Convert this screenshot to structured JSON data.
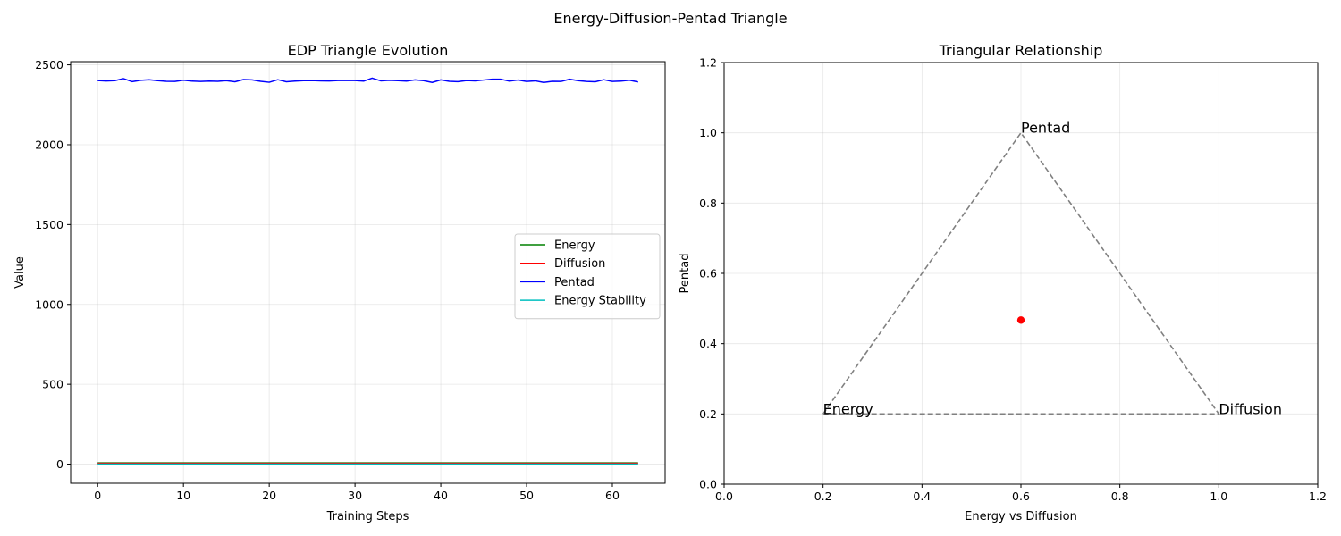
{
  "figure": {
    "suptitle": "Energy-Diffusion-Pentad Triangle"
  },
  "chart_data": [
    {
      "type": "line",
      "title": "EDP Triangle Evolution",
      "xlabel": "Training Steps",
      "ylabel": "Value",
      "xlim": [
        -3.15,
        66.15
      ],
      "ylim": [
        -120,
        2520
      ],
      "xticks": [
        0,
        10,
        20,
        30,
        40,
        50,
        60
      ],
      "yticks": [
        0,
        500,
        1000,
        1500,
        2000,
        2500
      ],
      "grid": true,
      "legend": "center-right",
      "x": [
        0,
        1,
        2,
        3,
        4,
        5,
        6,
        7,
        8,
        9,
        10,
        11,
        12,
        13,
        14,
        15,
        16,
        17,
        18,
        19,
        20,
        21,
        22,
        23,
        24,
        25,
        26,
        27,
        28,
        29,
        30,
        31,
        32,
        33,
        34,
        35,
        36,
        37,
        38,
        39,
        40,
        41,
        42,
        43,
        44,
        45,
        46,
        47,
        48,
        49,
        50,
        51,
        52,
        53,
        54,
        55,
        56,
        57,
        58,
        59,
        60,
        61,
        62,
        63
      ],
      "series": [
        {
          "name": "Energy",
          "color": "#008000",
          "values": [
            8,
            8,
            8,
            8,
            8,
            8,
            8,
            8,
            8,
            8,
            8,
            8,
            8,
            8,
            8,
            8,
            8,
            8,
            8,
            8,
            8,
            8,
            8,
            8,
            8,
            8,
            8,
            8,
            8,
            8,
            8,
            8,
            8,
            8,
            8,
            8,
            8,
            8,
            8,
            8,
            8,
            8,
            8,
            8,
            8,
            8,
            8,
            8,
            8,
            8,
            8,
            8,
            8,
            8,
            8,
            8,
            8,
            8,
            8,
            8,
            8,
            8,
            8,
            8
          ]
        },
        {
          "name": "Diffusion",
          "color": "#ff0000",
          "values": [
            5,
            5,
            5,
            5,
            5,
            5,
            5,
            5,
            5,
            5,
            5,
            5,
            5,
            5,
            5,
            5,
            5,
            5,
            5,
            5,
            5,
            5,
            5,
            5,
            5,
            5,
            5,
            5,
            5,
            5,
            5,
            5,
            5,
            5,
            5,
            5,
            5,
            5,
            5,
            5,
            5,
            5,
            5,
            5,
            5,
            5,
            5,
            5,
            5,
            5,
            5,
            5,
            5,
            5,
            5,
            5,
            5,
            5,
            5,
            5,
            5,
            5,
            5,
            5
          ]
        },
        {
          "name": "Pentad",
          "color": "#0000ff",
          "values": [
            2402,
            2399,
            2401,
            2414,
            2395,
            2403,
            2407,
            2401,
            2397,
            2396,
            2404,
            2398,
            2396,
            2398,
            2397,
            2401,
            2394,
            2408,
            2406,
            2397,
            2391,
            2407,
            2394,
            2398,
            2401,
            2402,
            2400,
            2399,
            2402,
            2402,
            2402,
            2398,
            2417,
            2400,
            2403,
            2401,
            2398,
            2406,
            2401,
            2390,
            2406,
            2397,
            2395,
            2402,
            2400,
            2405,
            2410,
            2410,
            2398,
            2405,
            2396,
            2400,
            2390,
            2397,
            2396,
            2410,
            2401,
            2396,
            2394,
            2407,
            2396,
            2398,
            2404,
            2393
          ]
        },
        {
          "name": "Energy Stability",
          "color": "#00bfbf",
          "values": [
            0,
            0,
            0,
            0,
            0,
            0,
            0,
            0,
            0,
            0,
            0,
            0,
            0,
            0,
            0,
            0,
            0,
            0,
            0,
            0,
            0,
            0,
            0,
            0,
            0,
            0,
            0,
            0,
            0,
            0,
            0,
            0,
            0,
            0,
            0,
            0,
            0,
            0,
            0,
            0,
            0,
            0,
            0,
            0,
            0,
            0,
            0,
            0,
            0,
            0,
            0,
            0,
            0,
            0,
            0,
            0,
            0,
            0,
            0,
            0,
            0,
            0,
            0,
            0
          ]
        }
      ]
    },
    {
      "type": "scatter",
      "title": "Triangular Relationship",
      "xlabel": "Energy vs Diffusion",
      "ylabel": "Pentad",
      "xlim": [
        0,
        1.2
      ],
      "ylim": [
        0,
        1.2
      ],
      "xticks": [
        0.0,
        0.2,
        0.4,
        0.6,
        0.8,
        1.0,
        1.2
      ],
      "yticks": [
        0.0,
        0.2,
        0.4,
        0.6,
        0.8,
        1.0,
        1.2
      ],
      "tick_format_decimals": 1,
      "grid": true,
      "triangle": {
        "color": "#808080",
        "style": "dashed",
        "vertices": [
          {
            "label": "Energy",
            "x": 0.2,
            "y": 0.2
          },
          {
            "label": "Diffusion",
            "x": 1.0,
            "y": 0.2
          },
          {
            "label": "Pentad",
            "x": 0.6,
            "y": 1.0
          }
        ]
      },
      "points": [
        {
          "x": 0.6,
          "y": 0.467,
          "color": "#ff0000"
        }
      ]
    }
  ]
}
